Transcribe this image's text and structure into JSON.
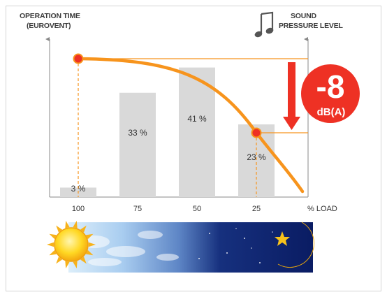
{
  "colors": {
    "bar": "#d9d9d9",
    "curve": "#f7941d",
    "marker": "#ee3124",
    "badge": "#ee3124",
    "arrow": "#ee3124",
    "axis": "#888888"
  },
  "icons": {
    "note": "music-note-icon",
    "sun": "sun-icon",
    "moon": "crescent-moon-icon",
    "star": "star-icon"
  },
  "badge": {
    "value": "-8",
    "unit": "dB(A)"
  },
  "chart_data": {
    "type": "bar",
    "title": "",
    "ylabel_left": [
      "OPERATION TIME",
      "(EUROVENT)"
    ],
    "ylabel_right": [
      "SOUND",
      "PRESSURE LEVEL"
    ],
    "xlabel": "% LOAD",
    "categories": [
      "100",
      "75",
      "50",
      "25"
    ],
    "values": [
      3,
      33,
      41,
      23
    ],
    "value_labels": [
      "3 %",
      "33 %",
      "41 %",
      "23 %"
    ],
    "ylim": [
      0,
      46
    ],
    "grid": false,
    "legend": "none",
    "curve": {
      "description": "sound pressure level vs load",
      "highlight_points": [
        "100",
        "25"
      ]
    }
  }
}
